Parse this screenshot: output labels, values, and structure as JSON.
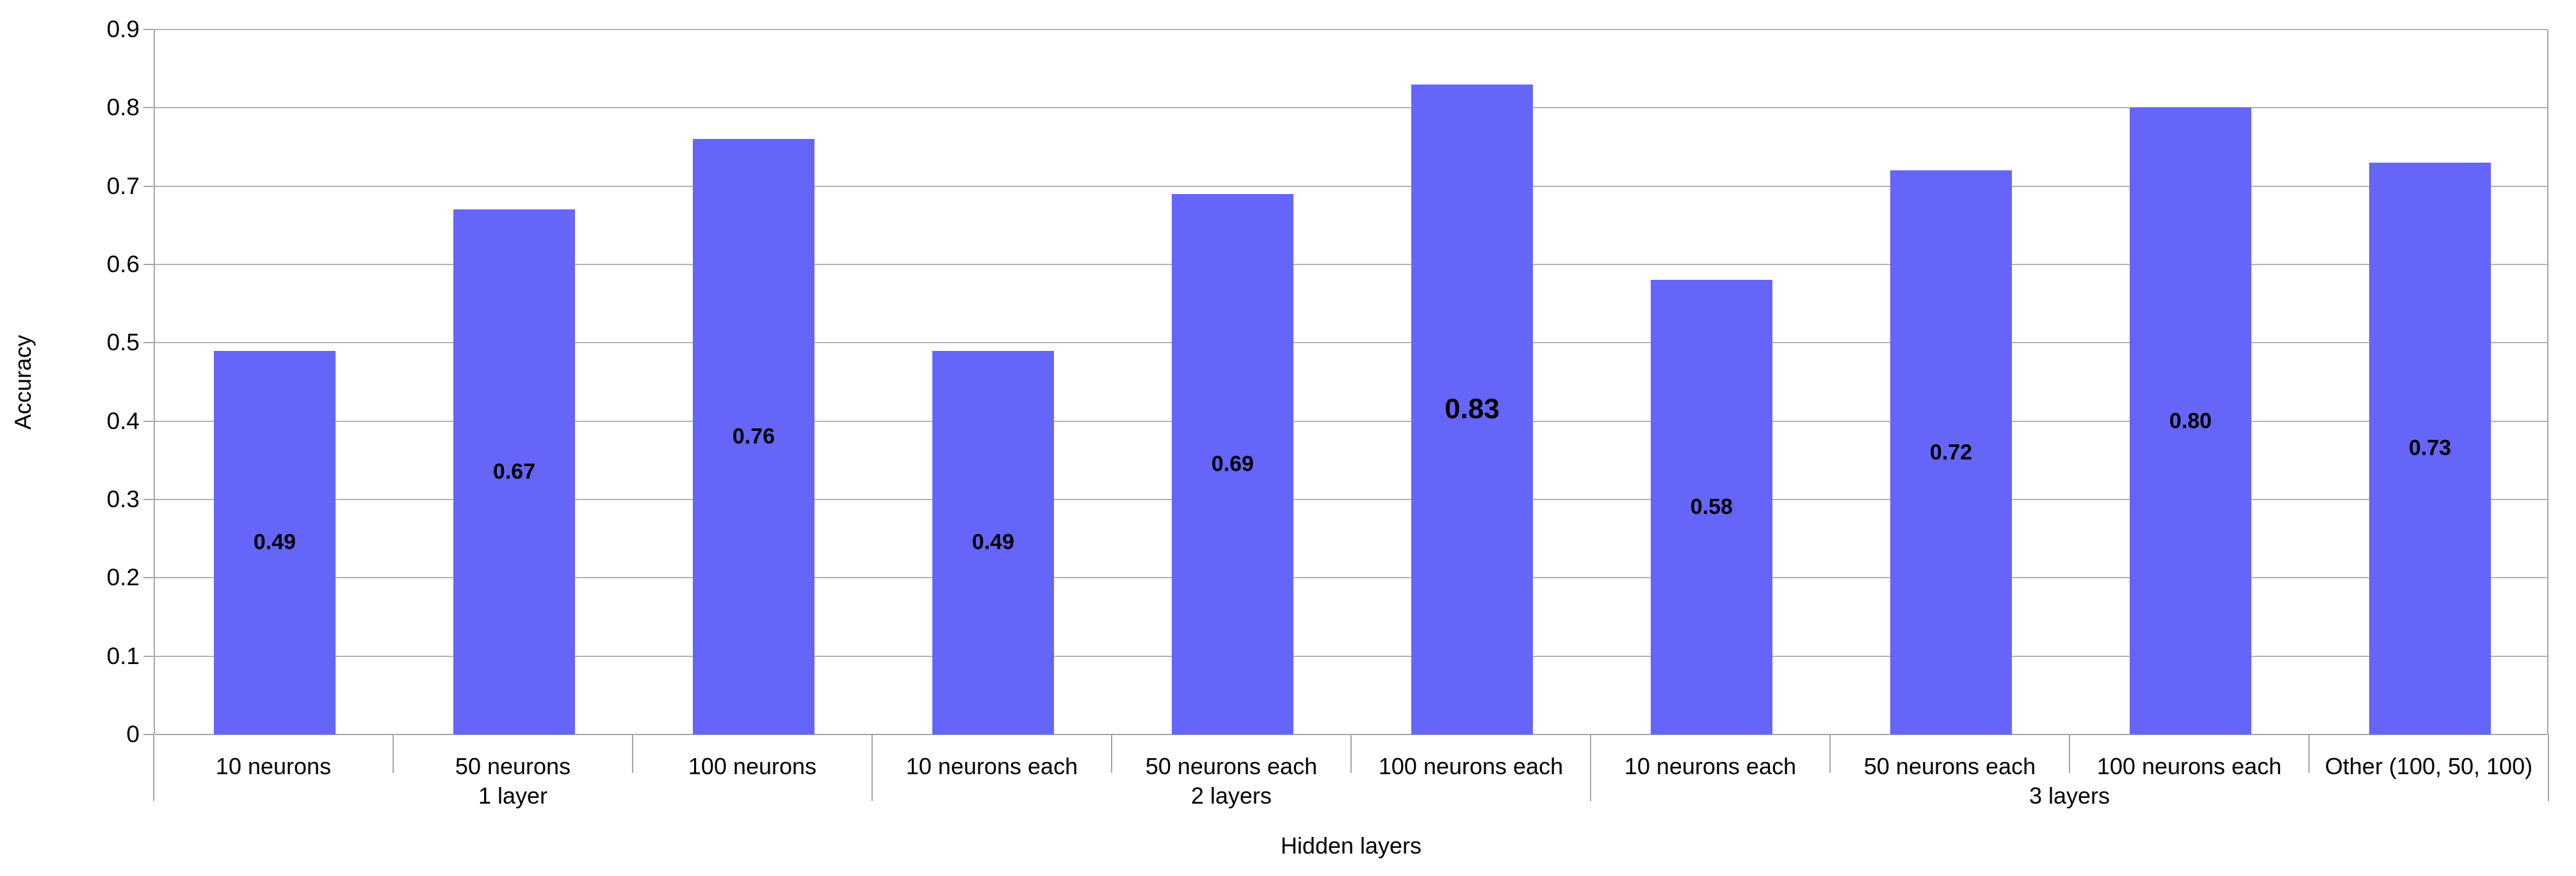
{
  "chart_data": {
    "type": "bar",
    "title": "",
    "xlabel": "Hidden layers",
    "ylabel": "Accuracy",
    "ylim": [
      0,
      0.9
    ],
    "grid": "horizontal",
    "legend": "none",
    "categories": [
      "10 neurons",
      "50 neurons",
      "100 neurons",
      "10 neurons each",
      "50 neurons each",
      "100 neurons each",
      "10 neurons each",
      "50 neurons each",
      "100 neurons each",
      "Other (100, 50, 100)"
    ],
    "values": [
      0.49,
      0.67,
      0.76,
      0.49,
      0.69,
      0.83,
      0.58,
      0.72,
      0.8,
      0.73
    ],
    "value_labels": [
      "0.49",
      "0.67",
      "0.76",
      "0.49",
      "0.69",
      "0.83",
      "0.58",
      "0.72",
      "0.80",
      "0.73"
    ],
    "groups": [
      {
        "label": "1 layer",
        "span": 3
      },
      {
        "label": "2 layers",
        "span": 3
      },
      {
        "label": "3 layers",
        "span": 4
      }
    ],
    "ytick_values": [
      0,
      0.1,
      0.2,
      0.3,
      0.4,
      0.5,
      0.6,
      0.7,
      0.8,
      0.9
    ],
    "ytick_labels": [
      "0",
      "0.1",
      "0.2",
      "0.3",
      "0.4",
      "0.5",
      "0.6",
      "0.7",
      "0.8",
      "0.9"
    ],
    "colors": {
      "bar": "#6565fa",
      "grid": "#b3b3b3",
      "axis": "#a6a6a6",
      "text": "#000000",
      "background": "#ffffff"
    }
  }
}
